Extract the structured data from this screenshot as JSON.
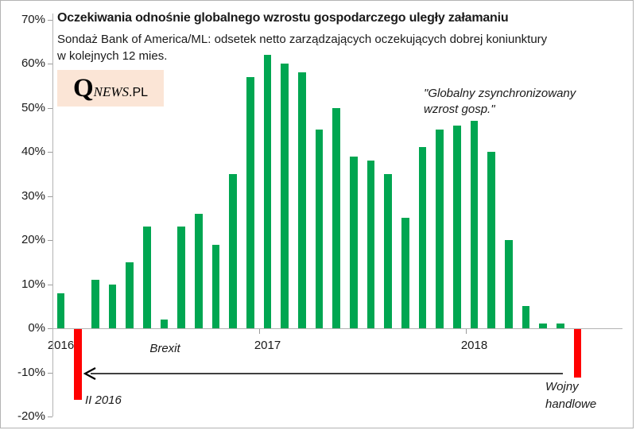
{
  "header": {
    "title": "Oczekiwania odnośnie globalnego wzrostu gospodarczego uległy załamaniu",
    "subtitle_line1": "Sondaż Bank of America/ML: odsetek netto zarządzających oczekujących dobrej koniunktury",
    "subtitle_line2": "w kolejnych 12 mies."
  },
  "logo": {
    "q": "Q",
    "news": "NEWS",
    "pl": ".PL",
    "bg_color": "#fbe5d6"
  },
  "chart_data": {
    "type": "bar",
    "title": "Oczekiwania odnośnie globalnego wzrostu gospodarczego uległy załamaniu",
    "subtitle": "Sondaż Bank of America/ML: odsetek netto zarządzających oczekujących dobrej koniunktury w kolejnych 12 mies.",
    "unit": "%",
    "ylim": [
      -20,
      70
    ],
    "ytick_labels": [
      "70%",
      "60%",
      "50%",
      "40%",
      "30%",
      "20%",
      "10%",
      "0%",
      "-10%",
      "-20%"
    ],
    "grid": false,
    "values": [
      8,
      -16,
      11,
      10,
      15,
      23,
      2,
      23,
      26,
      19,
      35,
      57,
      62,
      60,
      58,
      45,
      50,
      39,
      38,
      35,
      25,
      41,
      45,
      46,
      47,
      40,
      20,
      5,
      1,
      1,
      -11
    ],
    "positive_color": "#00a651",
    "negative_color": "#ff0000",
    "axis_color": "#b3b3b3",
    "year_labels": [
      {
        "label": "2016",
        "bar_index": 0
      },
      {
        "label": "2017",
        "bar_index": 12
      },
      {
        "label": "2018",
        "bar_index": 24
      }
    ],
    "annotations": {
      "brexit": "Brexit",
      "feb_2016": "II 2016",
      "global_growth_line1": "\"Globalny zsynchronizowany",
      "global_growth_line2": "wzrost gosp.\"",
      "trade_wars_line1": "Wojny",
      "trade_wars_line2": "handlowe"
    }
  }
}
